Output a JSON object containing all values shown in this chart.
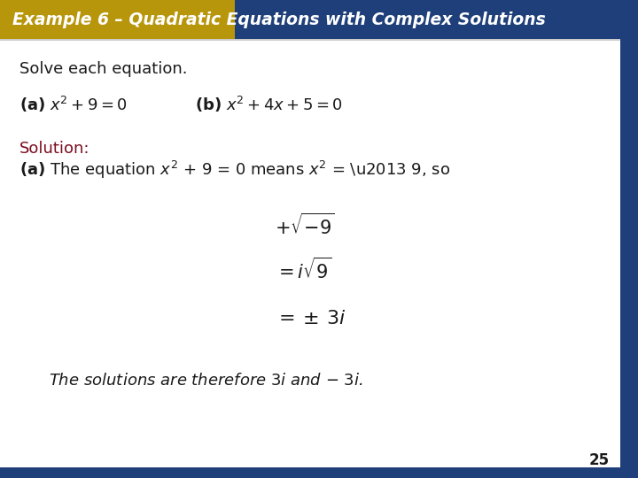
{
  "title": "Example 6 – Quadratic Equations with Complex Solutions",
  "title_color": "#ffffff",
  "header_gold_color": "#B8960C",
  "header_blue_color": "#1F3F7A",
  "bg_color": "#ffffff",
  "border_color": "#1F3F7A",
  "solution_color": "#7B0D1E",
  "page_num": "25",
  "font_size_title": 13.5,
  "font_size_body": 13,
  "font_size_eq": 13
}
